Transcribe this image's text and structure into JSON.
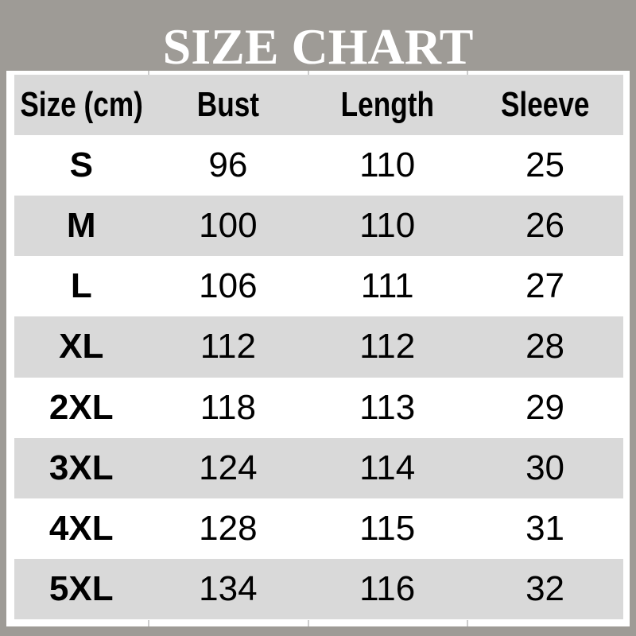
{
  "title": "SIZE CHART",
  "colors": {
    "page_background": "#9e9b96",
    "panel_background": "#ffffff",
    "band_gray": "#d9d9d9",
    "text": "#000000",
    "title_text": "#ffffff"
  },
  "chart_data": {
    "type": "table",
    "title": "SIZE CHART",
    "unit": "cm",
    "columns": [
      "Size (cm)",
      "Bust",
      "Length",
      "Sleeve"
    ],
    "column_keys": [
      "size",
      "bust",
      "length",
      "sleeve"
    ],
    "rows": [
      [
        "S",
        96,
        110,
        25
      ],
      [
        "M",
        100,
        110,
        26
      ],
      [
        "L",
        106,
        111,
        27
      ],
      [
        "XL",
        112,
        112,
        28
      ],
      [
        "2XL",
        118,
        113,
        29
      ],
      [
        "3XL",
        124,
        114,
        30
      ],
      [
        "4XL",
        128,
        115,
        31
      ],
      [
        "5XL",
        134,
        116,
        32
      ]
    ],
    "layout": {
      "header_fill": "#d9d9d9",
      "row_banding": "data rows alternate white then gray starting with white (S)",
      "text_align": "center",
      "size_column_bold": true,
      "grid_lines": "none; faint column tick marks above and below table"
    }
  }
}
